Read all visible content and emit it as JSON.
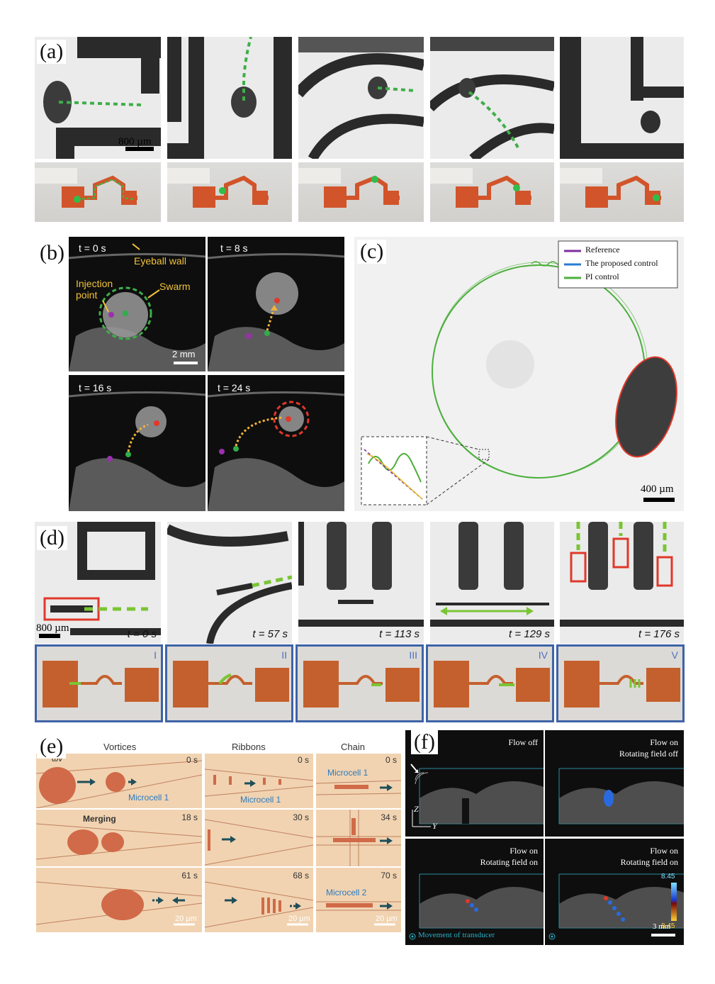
{
  "labels": {
    "a": "(a)",
    "b": "(b)",
    "c": "(c)",
    "d": "(d)",
    "e": "(e)",
    "f": "(f)"
  },
  "panel_a": {
    "scale": "800 µm"
  },
  "panel_b": {
    "times": [
      "t = 0 s",
      "t = 8 s",
      "t = 16 s",
      "t = 24 s"
    ],
    "eyeball_wall": "Eyeball wall",
    "injection": "Injection point",
    "injection_line1": "Injection",
    "injection_line2": "point",
    "swarm": "Swarm",
    "scale": "2 mm"
  },
  "panel_c": {
    "legend": [
      "Reference",
      "The proposed control",
      "PI control"
    ],
    "legend_colors": [
      "#7b2f9e",
      "#2a7bd5",
      "#4caf3c"
    ],
    "scale": "400 µm"
  },
  "panel_d": {
    "scale": "800 µm",
    "times": [
      "t = 0 s",
      "t = 57 s",
      "t = 113 s",
      "t = 129 s",
      "t = 176 s"
    ],
    "stages": [
      "I",
      "II",
      "III",
      "IV",
      "V"
    ]
  },
  "panel_e": {
    "headers": [
      "Vortices",
      "Ribbons",
      "Chain"
    ],
    "omega": "ωv",
    "merging": "Merging",
    "microcell1": "Microcell 1",
    "microcell2": "Microcell 2",
    "times_col1": [
      "0 s",
      "18 s",
      "61 s"
    ],
    "times_col2": [
      "0 s",
      "30 s",
      "68 s"
    ],
    "times_col3": [
      "0 s",
      "34 s",
      "70 s"
    ],
    "scale": "20 µm"
  },
  "panel_f": {
    "flow_off": "Flow off",
    "flow_on": "Flow on",
    "rot_off": "Rotating field off",
    "rot_on": "Rotating field on",
    "axis_z": "Z",
    "axis_y": "Y",
    "colorbar_max": "8.45",
    "colorbar_min": "8.45",
    "movement": "Movement of transducer",
    "scale": "3 mm"
  }
}
